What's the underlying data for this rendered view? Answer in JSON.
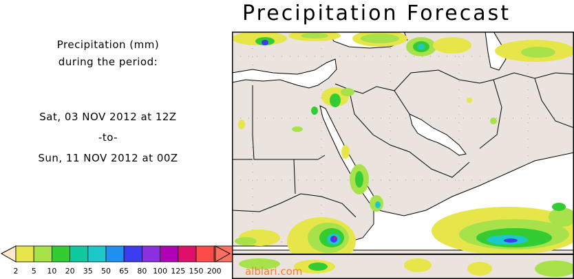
{
  "title": "Precipitation Forecast",
  "info": {
    "line1": "Precipitation (mm)",
    "line2": "during the period:",
    "start": "Sat, 03 NOV 2012 at 12Z",
    "sep": "-to-",
    "end": "Sun, 11 NOV 2012 at 00Z"
  },
  "legend": {
    "labels": [
      "2",
      "5",
      "10",
      "20",
      "35",
      "50",
      "65",
      "80",
      "100",
      "125",
      "150",
      "200"
    ],
    "colors": [
      "#e6e64b",
      "#a7e24a",
      "#33cc33",
      "#10c9a0",
      "#1cc8cc",
      "#2090f0",
      "#3c3cf0",
      "#8c2fe0",
      "#b000b8",
      "#e0106a",
      "#ff4a4a",
      "#ff7060"
    ]
  },
  "watermark": "albiari.com"
}
